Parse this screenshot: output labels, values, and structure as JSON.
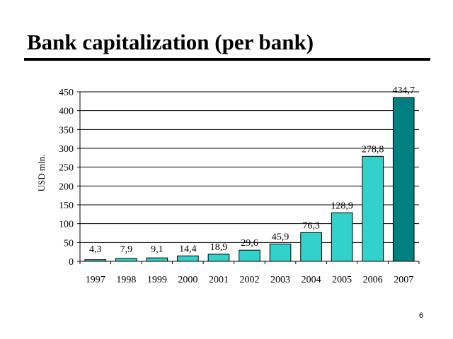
{
  "slide": {
    "title": "Bank capitalization (per bank)",
    "page_number": "6"
  },
  "chart_data": {
    "type": "bar",
    "title": "",
    "xlabel": "",
    "ylabel": "USD mln.",
    "ylim": [
      0,
      450
    ],
    "yticks": [
      0,
      50,
      100,
      150,
      200,
      250,
      300,
      350,
      400,
      450
    ],
    "grid": true,
    "legend": "none",
    "categories": [
      "1997",
      "1998",
      "1999",
      "2000",
      "2001",
      "2002",
      "2003",
      "2004",
      "2005",
      "2006",
      "2007"
    ],
    "values": [
      4.3,
      7.9,
      9.1,
      14.4,
      18.9,
      29.6,
      45.9,
      76.3,
      128.9,
      278.8,
      434.7
    ],
    "value_labels": [
      "4,3",
      "7,9",
      "9,1",
      "14,4",
      "18,9",
      "29,6",
      "45,9",
      "76,3",
      "128,9",
      "278,8",
      "434,7"
    ],
    "colors": {
      "bar": "#33D1CC",
      "highlight_bar": "#008080",
      "highlight_index": 10
    }
  }
}
